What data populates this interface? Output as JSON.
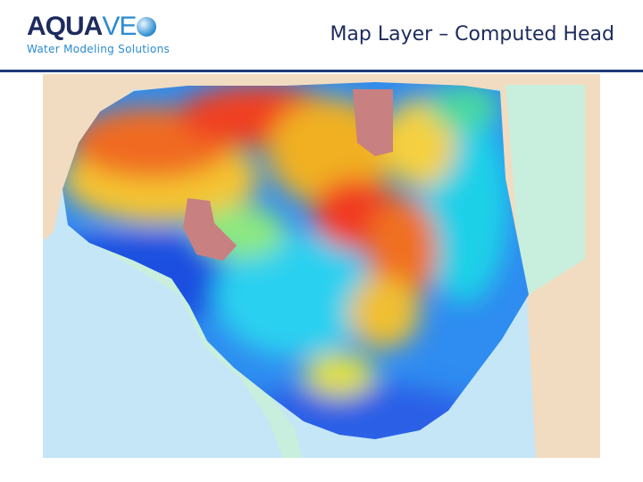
{
  "header": {
    "logo": {
      "brand_left": "AQUA",
      "brand_right": "VE",
      "tagline": "Water Modeling Solutions"
    },
    "title": "Map Layer – Computed Head"
  }
}
